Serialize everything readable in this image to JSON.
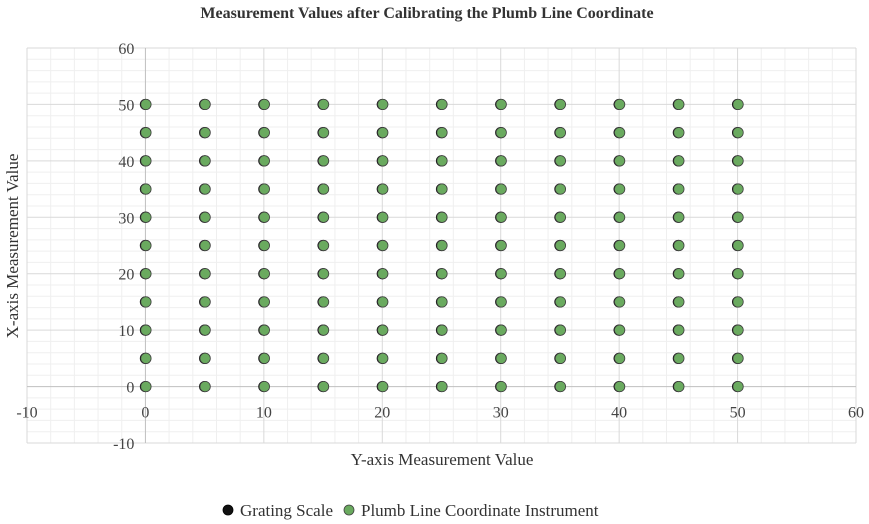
{
  "chart_data": {
    "type": "scatter",
    "title": "Measurement Values after Calibrating the Plumb Line Coordinate",
    "xlabel": "Y-axis Measurement Value",
    "ylabel": "X-axis Measurement Value",
    "xlim": [
      -10,
      60
    ],
    "ylim": [
      -10,
      60
    ],
    "xticks": [
      "-10",
      "0",
      "10",
      "20",
      "30",
      "40",
      "50",
      "60"
    ],
    "yticks": [
      "-10",
      "0",
      "10",
      "20",
      "30",
      "40",
      "50",
      "60"
    ],
    "grid": true,
    "legend_position": "bottom",
    "grid_values": [
      0,
      5,
      10,
      15,
      20,
      25,
      30,
      35,
      40,
      45,
      50
    ],
    "series": [
      {
        "name": "Grating Scale",
        "color": "#111111",
        "x_values": [
          0,
          5,
          10,
          15,
          20,
          25,
          30,
          35,
          40,
          45,
          50
        ],
        "y_values": [
          0,
          5,
          10,
          15,
          20,
          25,
          30,
          35,
          40,
          45,
          50
        ]
      },
      {
        "name": "Plumb Line Coordinate Instrument",
        "color": "#6aaa5f",
        "x_values": [
          0,
          5,
          10,
          15,
          20,
          25,
          30,
          35,
          40,
          45,
          50
        ],
        "y_values": [
          0,
          5,
          10,
          15,
          20,
          25,
          30,
          35,
          40,
          45,
          50
        ]
      }
    ]
  }
}
